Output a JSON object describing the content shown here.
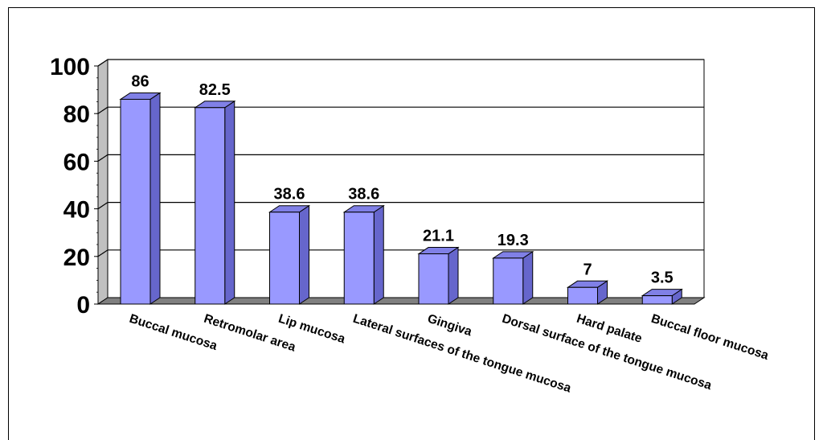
{
  "chart_data": {
    "type": "bar",
    "categories": [
      "Buccal mucosa",
      "Retromolar area",
      "Lip mucosa",
      "Lateral surfaces of the tongue mucosa",
      "Gingiva",
      "Dorsal surface of the tongue mucosa",
      "Hard palate",
      "Buccal floor mucosa"
    ],
    "values": [
      86,
      82.5,
      38.6,
      38.6,
      21.1,
      19.3,
      7,
      3.5
    ],
    "data_labels": [
      "86",
      "82.5",
      "38.6",
      "38.6",
      "21.1",
      "19.3",
      "7",
      "3.5"
    ],
    "y_ticks": [
      "0",
      "20",
      "40",
      "60",
      "80",
      "100"
    ],
    "ylim": [
      0,
      100
    ],
    "title": "",
    "xlabel": "",
    "ylabel": "",
    "grid": true,
    "style": "3d-column",
    "colors": {
      "bar_front": "#9999ff",
      "bar_side": "#6666cc",
      "bar_top": "#8080e6",
      "wall": "#c0c0c0",
      "floor": "#808080",
      "gridline": "#000000"
    }
  }
}
